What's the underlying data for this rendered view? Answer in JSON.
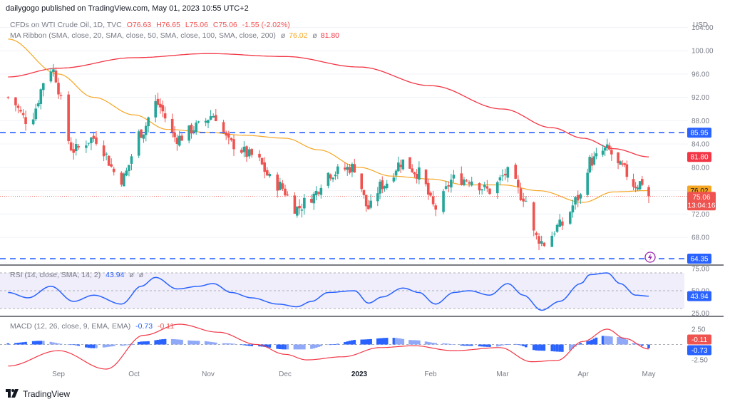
{
  "publisher_line": "dailygogo published on TradingView.com, May 01, 2023 10:55 UTC+2",
  "footer_brand": "TradingView",
  "colors": {
    "up": "#26a69a",
    "down": "#ef5350",
    "sma50": "#f5a623",
    "sma200": "#f23645",
    "level_line": "#2962ff",
    "rsi_line": "#2962ff",
    "rsi_band": "#f0eefb",
    "macd_line": "#2962ff",
    "signal_line": "#f23645"
  },
  "chart_data": [
    {
      "type": "candlestick",
      "title": "CFDs on WTI Crude Oil, 1D, TVC",
      "ohlc_label": {
        "o": "O76.63",
        "h": "H76.65",
        "l": "L75.06",
        "c": "C75.06",
        "chg": "-1.55 (-2.02%)"
      },
      "indicator_label": "MA Ribbon (SMA, close, 20, SMA, close, 50, SMA, close, 100, SMA, close, 200)",
      "indicator_values": [
        "76.02",
        "81.80"
      ],
      "ylabel": "USD",
      "y_ticks": [
        "104.00",
        "100.00",
        "96.00",
        "92.00",
        "88.00",
        "84.00",
        "80.00",
        "76.00",
        "72.00",
        "68.00"
      ],
      "ylim": [
        63.5,
        106
      ],
      "x_ticks": [
        "Sep",
        "Oct",
        "Nov",
        "Dec",
        "2023",
        "Feb",
        "Mar",
        "Apr",
        "May"
      ],
      "x_dates": [
        "2022-09-01",
        "2022-10-01",
        "2022-11-01",
        "2022-12-01",
        "2023-01-01",
        "2023-02-01",
        "2023-03-01",
        "2023-04-01",
        "2023-05-01"
      ],
      "horizontal_levels": [
        85.95,
        64.35
      ],
      "level_labels": [
        "85.95",
        "64.35"
      ],
      "last_price": "75.06",
      "countdown": "13:04:16",
      "sma_values": {
        "sma50": "76.02",
        "sma200": "81.80"
      },
      "close_anchors": {
        "dates": [
          "2022-08-12",
          "2022-08-20",
          "2022-08-29",
          "2022-09-07",
          "2022-09-15",
          "2022-09-26",
          "2022-10-04",
          "2022-10-10",
          "2022-10-19",
          "2022-10-28",
          "2022-11-03",
          "2022-11-10",
          "2022-11-18",
          "2022-11-28",
          "2022-12-06",
          "2022-12-12",
          "2022-12-19",
          "2022-12-30",
          "2023-01-05",
          "2023-01-11",
          "2023-01-20",
          "2023-01-27",
          "2023-02-03",
          "2023-02-10",
          "2023-02-16",
          "2023-02-24",
          "2023-03-03",
          "2023-03-09",
          "2023-03-14",
          "2023-03-17",
          "2023-03-23",
          "2023-03-31",
          "2023-04-04",
          "2023-04-12",
          "2023-04-18",
          "2023-04-25",
          "2023-04-28",
          "2023-05-01"
        ],
        "closes": [
          92,
          88,
          97,
          83,
          85,
          78,
          86,
          91,
          85,
          87,
          89,
          84,
          82,
          77,
          73,
          75,
          79,
          80,
          73,
          77,
          81,
          79,
          73,
          78,
          78,
          76,
          79,
          75,
          68,
          67,
          70,
          75,
          81,
          83,
          80,
          77,
          77.5,
          75.06
        ]
      },
      "sma50_anchors": {
        "dates": [
          "2022-08-12",
          "2022-09-01",
          "2022-09-15",
          "2022-10-01",
          "2022-10-15",
          "2022-11-01",
          "2022-11-15",
          "2022-12-01",
          "2022-12-15",
          "2023-01-01",
          "2023-01-15",
          "2023-02-01",
          "2023-02-15",
          "2023-03-01",
          "2023-03-15",
          "2023-04-01",
          "2023-04-15",
          "2023-05-01"
        ],
        "values": [
          102,
          96,
          92,
          89,
          86.5,
          86,
          85.5,
          85,
          83,
          80,
          78.5,
          78,
          77,
          77,
          76,
          74,
          75.8,
          76.02
        ]
      },
      "sma200_anchors": {
        "dates": [
          "2022-08-12",
          "2022-09-01",
          "2022-10-01",
          "2022-11-01",
          "2022-12-01",
          "2023-01-01",
          "2023-02-01",
          "2023-03-01",
          "2023-03-20",
          "2023-04-01",
          "2023-04-15",
          "2023-05-01"
        ],
        "values": [
          95.5,
          97,
          98.8,
          99.5,
          99,
          97.2,
          94,
          90,
          86.8,
          85,
          83.2,
          81.8
        ]
      }
    },
    {
      "type": "line",
      "title": "RSI (14, close, SMA, 14, 2)",
      "value": "43.94",
      "value_label": "43.94",
      "ylim": [
        22,
        78
      ],
      "y_ticks": [
        "75.00",
        "50.00",
        "25.00"
      ],
      "band": [
        30,
        70
      ],
      "midline": 50,
      "anchors": {
        "dates": [
          "2022-08-12",
          "2022-08-20",
          "2022-08-29",
          "2022-09-07",
          "2022-09-15",
          "2022-09-26",
          "2022-10-04",
          "2022-10-10",
          "2022-10-19",
          "2022-10-28",
          "2022-11-03",
          "2022-11-10",
          "2022-11-18",
          "2022-11-28",
          "2022-12-06",
          "2022-12-12",
          "2022-12-19",
          "2022-12-30",
          "2023-01-05",
          "2023-01-11",
          "2023-01-20",
          "2023-01-27",
          "2023-02-03",
          "2023-02-10",
          "2023-02-16",
          "2023-02-24",
          "2023-03-03",
          "2023-03-09",
          "2023-03-16",
          "2023-03-23",
          "2023-03-31",
          "2023-04-04",
          "2023-04-12",
          "2023-04-18",
          "2023-04-25",
          "2023-05-01"
        ],
        "values": [
          48,
          42,
          55,
          38,
          45,
          35,
          55,
          65,
          52,
          55,
          58,
          48,
          42,
          35,
          32,
          38,
          48,
          50,
          36,
          43,
          53,
          48,
          35,
          48,
          50,
          45,
          58,
          45,
          28,
          38,
          58,
          68,
          70,
          58,
          45,
          43.94
        ]
      }
    },
    {
      "type": "bar",
      "title": "MACD (12, 26, close, 9, EMA, EMA)",
      "macd": "-0.73",
      "signal": "-0.11",
      "value_labels": [
        "-0.11",
        "-0.73"
      ],
      "ylim": [
        -4,
        4
      ],
      "y_ticks": [
        "2.50",
        "-2.50"
      ],
      "histogram_anchors": {
        "dates": [
          "2022-08-12",
          "2022-08-25",
          "2022-09-05",
          "2022-09-15",
          "2022-09-26",
          "2022-10-05",
          "2022-10-15",
          "2022-10-28",
          "2022-11-08",
          "2022-11-20",
          "2022-12-01",
          "2022-12-10",
          "2022-12-20",
          "2023-01-01",
          "2023-01-15",
          "2023-01-25",
          "2023-02-05",
          "2023-02-15",
          "2023-02-25",
          "2023-03-05",
          "2023-03-15",
          "2023-03-25",
          "2023-04-02",
          "2023-04-10",
          "2023-04-18",
          "2023-04-25",
          "2023-05-01"
        ],
        "values": [
          0.2,
          0.6,
          0.0,
          -0.6,
          -0.2,
          0.5,
          0.9,
          0.6,
          0.2,
          -0.3,
          -0.8,
          -0.8,
          0.0,
          0.8,
          1.1,
          0.7,
          0.2,
          -0.2,
          -0.4,
          0.1,
          -1.0,
          -1.2,
          0.5,
          1.4,
          1.2,
          0.2,
          -0.62
        ]
      },
      "macd_anchors": {
        "dates": [
          "2022-08-12",
          "2022-09-01",
          "2022-09-20",
          "2022-10-05",
          "2022-10-20",
          "2022-11-05",
          "2022-11-20",
          "2022-12-01",
          "2022-12-10",
          "2022-12-25",
          "2023-01-10",
          "2023-01-25",
          "2023-02-10",
          "2023-02-28",
          "2023-03-12",
          "2023-03-22",
          "2023-04-01",
          "2023-04-12",
          "2023-04-20",
          "2023-05-01"
        ],
        "values": [
          -3.5,
          -1.0,
          -4.0,
          1.5,
          3.3,
          2.0,
          0.0,
          -1.6,
          -2.5,
          -2.0,
          -0.5,
          -0.2,
          -1.0,
          -0.5,
          -2.8,
          -2.6,
          0.5,
          2.5,
          1.0,
          -0.73
        ]
      }
    }
  ]
}
